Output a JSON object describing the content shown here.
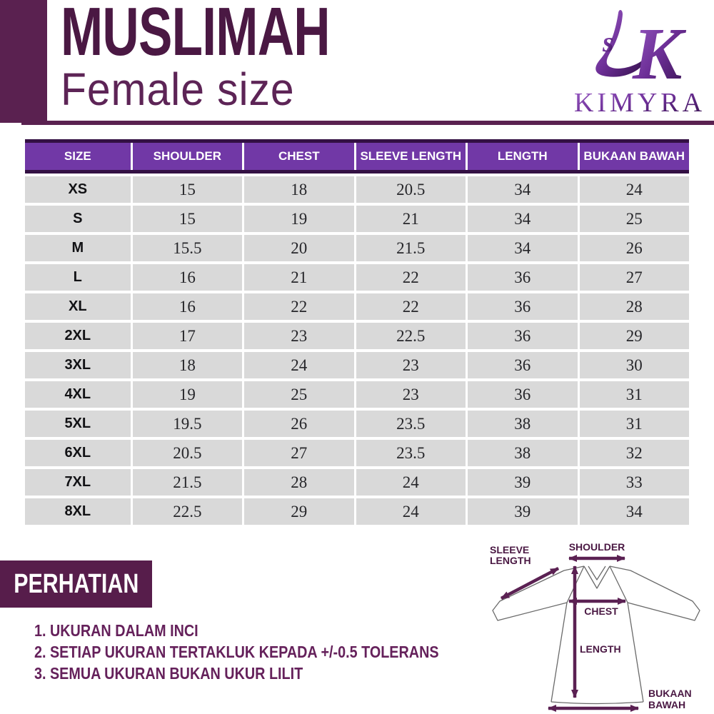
{
  "header": {
    "title": "MUSLIMAH",
    "subtitle": "Female size",
    "brand": "KIMYRA",
    "logo_monogram_k": "K",
    "logo_monogram_s": "s"
  },
  "table": {
    "columns": [
      "SIZE",
      "SHOULDER",
      "CHEST",
      "SLEEVE LENGTH",
      "LENGTH",
      "BUKAAN BAWAH"
    ],
    "rows": [
      {
        "size": "XS",
        "shoulder": "15",
        "chest": "18",
        "sleeve_length": "20.5",
        "length": "34",
        "bukaan_bawah": "24"
      },
      {
        "size": "S",
        "shoulder": "15",
        "chest": "19",
        "sleeve_length": "21",
        "length": "34",
        "bukaan_bawah": "25"
      },
      {
        "size": "M",
        "shoulder": "15.5",
        "chest": "20",
        "sleeve_length": "21.5",
        "length": "34",
        "bukaan_bawah": "26"
      },
      {
        "size": "L",
        "shoulder": "16",
        "chest": "21",
        "sleeve_length": "22",
        "length": "36",
        "bukaan_bawah": "27"
      },
      {
        "size": "XL",
        "shoulder": "16",
        "chest": "22",
        "sleeve_length": "22",
        "length": "36",
        "bukaan_bawah": "28"
      },
      {
        "size": "2XL",
        "shoulder": "17",
        "chest": "23",
        "sleeve_length": "22.5",
        "length": "36",
        "bukaan_bawah": "29"
      },
      {
        "size": "3XL",
        "shoulder": "18",
        "chest": "24",
        "sleeve_length": "23",
        "length": "36",
        "bukaan_bawah": "30"
      },
      {
        "size": "4XL",
        "shoulder": "19",
        "chest": "25",
        "sleeve_length": "23",
        "length": "36",
        "bukaan_bawah": "31"
      },
      {
        "size": "5XL",
        "shoulder": "19.5",
        "chest": "26",
        "sleeve_length": "23.5",
        "length": "38",
        "bukaan_bawah": "31"
      },
      {
        "size": "6XL",
        "shoulder": "20.5",
        "chest": "27",
        "sleeve_length": "23.5",
        "length": "38",
        "bukaan_bawah": "32"
      },
      {
        "size": "7XL",
        "shoulder": "21.5",
        "chest": "28",
        "sleeve_length": "24",
        "length": "39",
        "bukaan_bawah": "33"
      },
      {
        "size": "8XL",
        "shoulder": "22.5",
        "chest": "29",
        "sleeve_length": "24",
        "length": "39",
        "bukaan_bawah": "34"
      }
    ]
  },
  "notes": {
    "heading": "PERHATIAN",
    "items": [
      "1. UKURAN DALAM INCI",
      "2. SETIAP UKURAN TERTAKLUK KEPADA +/-0.5 TOLERANS",
      "3. SEMUA UKURAN BUKAN UKUR LILIT"
    ]
  },
  "diagram": {
    "labels": {
      "sleeve_line1": "SLEEVE",
      "sleeve_line2": "LENGTH",
      "shoulder": "SHOULDER",
      "chest": "CHEST",
      "length": "LENGTH",
      "bukaan_line1": "BUKAAN",
      "bukaan_line2": "BAWAH"
    }
  },
  "colors": {
    "dark_plum": "#5a2150",
    "title_purple": "#4a1843",
    "table_header_purple": "#7138a6",
    "table_header_border": "#331043",
    "row_gray": "#d9d9d9",
    "notes_box": "#571d4b",
    "notes_text": "#65215b",
    "arrow_purple": "#5b2153"
  }
}
